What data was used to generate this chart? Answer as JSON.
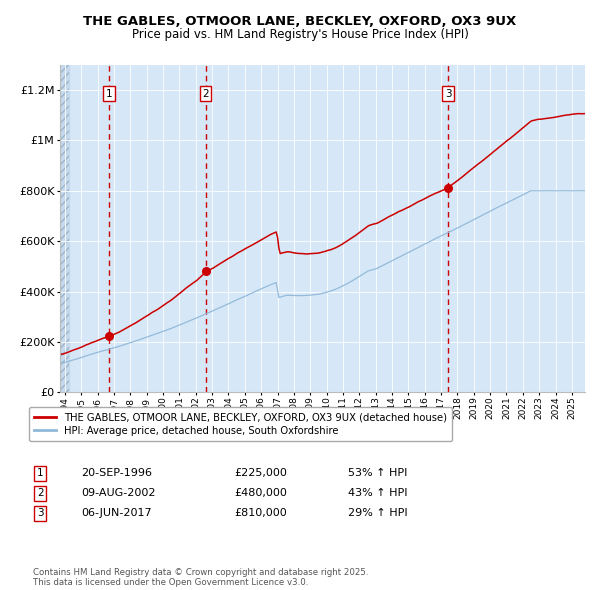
{
  "title_line1": "THE GABLES, OTMOOR LANE, BECKLEY, OXFORD, OX3 9UX",
  "title_line2": "Price paid vs. HM Land Registry's House Price Index (HPI)",
  "ylim": [
    0,
    1300000
  ],
  "xlim_start": 1993.7,
  "xlim_end": 2025.8,
  "background_color": "#d6e8f7",
  "grid_color": "#ffffff",
  "red_line_color": "#cc0000",
  "blue_line_color": "#90b8d8",
  "dashed_line_color": "#cc0000",
  "purchases": [
    {
      "label": "1",
      "date_dec": 1996.72,
      "price": 225000,
      "text": "20-SEP-1996",
      "amount": "£225,000",
      "pct": "53% ↑ HPI"
    },
    {
      "label": "2",
      "date_dec": 2002.6,
      "price": 480000,
      "text": "09-AUG-2002",
      "amount": "£480,000",
      "pct": "43% ↑ HPI"
    },
    {
      "label": "3",
      "date_dec": 2017.43,
      "price": 810000,
      "text": "06-JUN-2017",
      "amount": "£810,000",
      "pct": "29% ↑ HPI"
    }
  ],
  "legend_label_red": "THE GABLES, OTMOOR LANE, BECKLEY, OXFORD, OX3 9UX (detached house)",
  "legend_label_blue": "HPI: Average price, detached house, South Oxfordshire",
  "footnote": "Contains HM Land Registry data © Crown copyright and database right 2025.\nThis data is licensed under the Open Government Licence v3.0.",
  "ytick_labels": [
    "£0",
    "£200K",
    "£400K",
    "£600K",
    "£800K",
    "£1M",
    "£1.2M"
  ],
  "ytick_values": [
    0,
    200000,
    400000,
    600000,
    800000,
    1000000,
    1200000
  ]
}
